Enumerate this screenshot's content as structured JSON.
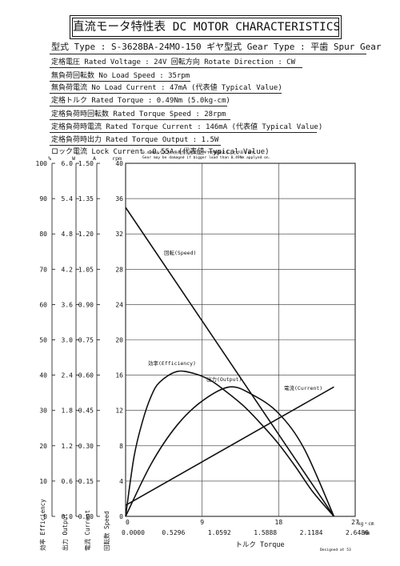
{
  "header": {
    "title": "直流モータ特性表 DC MOTOR CHARACTERISTICS"
  },
  "specs": {
    "model": "型式 Type : S-3628BA-24MO-150  ギヤ型式 Gear Type : 平歯  Spur Gear",
    "rated_voltage": "定格電圧 Rated Voltage : 24V   回転方向 Rotate Direction : CW",
    "no_load_speed": "無負荷回転数 No Load Speed : 35rpm",
    "no_load_current": "無負荷電流 No Load Current : 47mA (代表値 Typical Value)",
    "rated_torque": "定格トルク Rated Torque : 0.49Nm (5.0kg-cm)",
    "rated_torque_speed": "定格負荷時回転数 Rated Torque Speed : 28rpm",
    "rated_torque_current": "定格負荷時電流 Rated Torque Current : 146mA (代表値 Typical Value)",
    "rated_torque_output": "定格負荷時出力 Rated Torque Output : 1.5W",
    "lock_current": "ロック電流 Lock Current :0.55A (代表値 Typical Value)"
  },
  "notes": {
    "warning_jp": "0.49Nmより大きい負荷がかかると、ギヤが破損することがあります。",
    "warning_en": "Gear may be damaged if bigger load than 0.49Nm applyed on."
  },
  "footer": {
    "designed": "Designed at 53"
  },
  "chart_data": {
    "type": "line",
    "xlabel": "トルク Torque",
    "x_unit_top": "kg・cm",
    "x_unit_bottom": "Nm",
    "xlim": [
      0,
      27
    ],
    "x_ticks_kgcm": [
      "0",
      "9",
      "18",
      "27"
    ],
    "x_ticks_nm": [
      "0.0000",
      "0.5296",
      "1.0592",
      "1.5888",
      "2.1184",
      "2.6480"
    ],
    "y_axes": [
      {
        "unit": "%",
        "label": "効率 Efficiency",
        "ticks": [
          "0",
          "10",
          "20",
          "30",
          "40",
          "50",
          "60",
          "70",
          "80",
          "90",
          "100"
        ]
      },
      {
        "unit": "W",
        "label": "出力 Output",
        "ticks": [
          "0.0",
          "0.6",
          "1.2",
          "1.8",
          "2.4",
          "3.0",
          "3.6",
          "4.2",
          "4.8",
          "5.4",
          "6.0"
        ]
      },
      {
        "unit": "A",
        "label": "電流 Current",
        "ticks": [
          "0.00",
          "0.15",
          "0.30",
          "0.45",
          "0.60",
          "0.75",
          "0.90",
          "1.05",
          "1.20",
          "1.35",
          "1.50"
        ]
      },
      {
        "unit": "rpm",
        "label": "回転数 Speed",
        "ticks": [
          "0",
          "4",
          "8",
          "12",
          "16",
          "20",
          "24",
          "28",
          "32",
          "36",
          "40"
        ]
      }
    ],
    "series": [
      {
        "name": "回転(Speed)",
        "unit": "rpm",
        "x": [
          0,
          24.5
        ],
        "y": [
          35,
          0
        ]
      },
      {
        "name": "電流(Current)",
        "unit": "A",
        "x": [
          0,
          24.5
        ],
        "y": [
          0.047,
          0.55
        ]
      },
      {
        "name": "出力(Output)",
        "unit": "W",
        "x": [
          0,
          3,
          6,
          9,
          12.25,
          15,
          18,
          21,
          24.5
        ],
        "y": [
          0,
          0.89,
          1.54,
          1.96,
          2.2,
          2.06,
          1.75,
          1.15,
          0
        ]
      },
      {
        "name": "効率(Efficiency)",
        "unit": "%",
        "x": [
          0,
          1,
          2,
          3,
          4,
          6,
          8,
          10,
          12,
          14,
          16,
          18,
          20,
          22,
          24.5
        ],
        "y": [
          0,
          17,
          27,
          34,
          38,
          41,
          40.5,
          38.5,
          35,
          31,
          26,
          20.5,
          14,
          7,
          0
        ]
      }
    ]
  }
}
